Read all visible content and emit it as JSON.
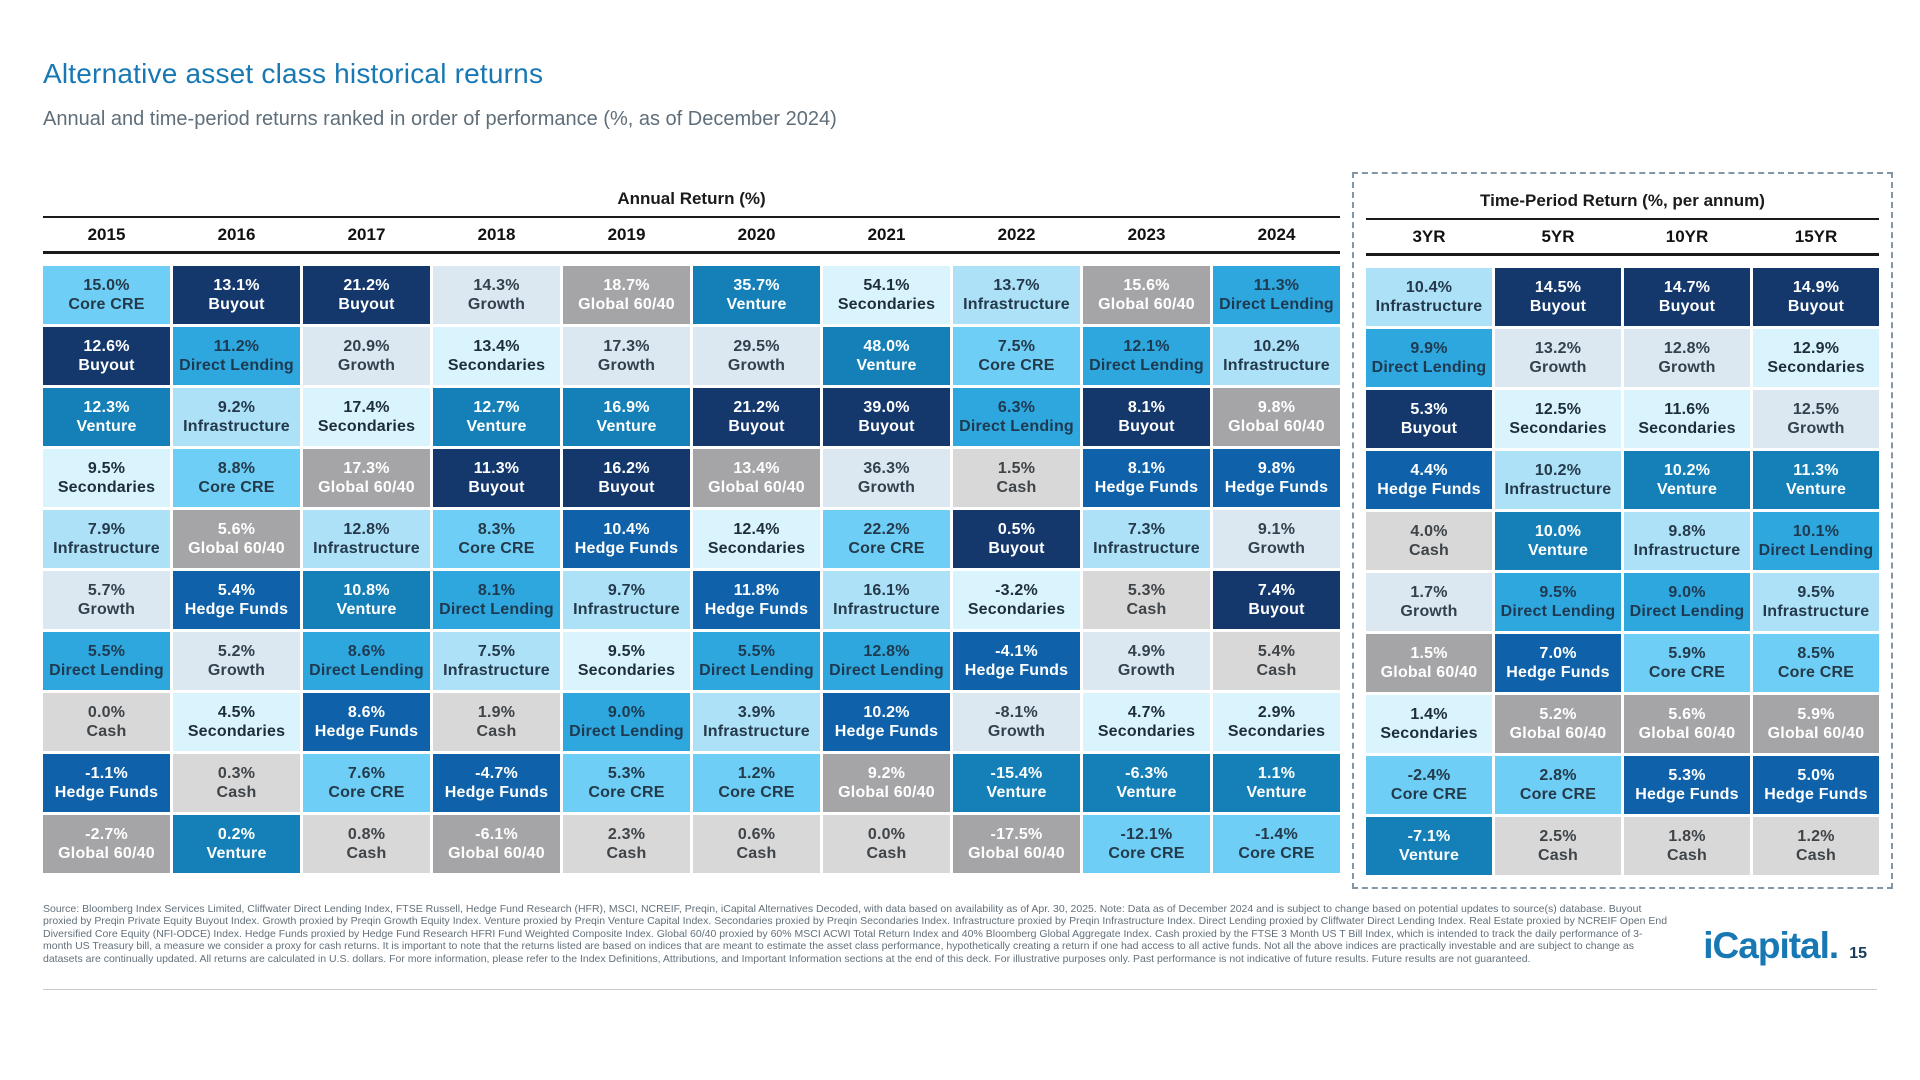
{
  "page": {
    "title": "Alternative asset class historical returns",
    "subtitle": "Annual and time-period returns ranked in order of performance (%, as of December 2024)",
    "logo_text": "iCapital",
    "logo_dot": ".",
    "page_number": "15",
    "footer": "Source: Bloomberg Index Services Limited, Cliffwater Direct Lending Index, FTSE Russell, Hedge Fund Research (HFR), MSCI, NCREIF, Preqin, iCapital Alternatives Decoded, with data based on availability as of Apr. 30, 2025. Note: Data as of December 2024 and is subject to change based on potential updates to source(s) database. Buyout proxied by Preqin Private Equity Buyout Index. Growth proxied by Preqin Growth Equity Index. Venture proxied by Preqin Venture Capital Index. Secondaries proxied by Preqin Secondaries Index. Infrastructure proxied by Preqin Infrastructure Index. Direct Lending proxied by Cliffwater Direct Lending Index. Real Estate proxied by NCREIF Open End Diversified Core Equity (NFI-ODCE) Index. Hedge Funds proxied by Hedge Fund Research HFRI Fund Weighted Composite Index. Global 60/40 proxied by 60% MSCI ACWI Total Return Index and 40% Bloomberg Global Aggregate Index. Cash proxied by the FTSE 3 Month US T Bill Index, which is intended to track the daily performance of 3-month US Treasury bill, a measure we consider a proxy for cash returns. It is important to note that the returns listed are based on indices that are meant to estimate the asset class performance, hypothetically creating a return if one had access to all active funds. Not all the above indices are practically investable and are subject to change as datasets are continually updated. All returns are calculated in U.S. dollars. For more information, please refer to the Index Definitions, Attributions, and Important Information sections at the end of this deck. For illustrative purposes only. Past performance is not indicative of future results. Future results are not guaranteed."
  },
  "colors": {
    "title_accent": "#1878B4",
    "asset_classes": {
      "Core CRE": {
        "bg": "#6ECEF5",
        "fg": "#24394A"
      },
      "Buyout": {
        "bg": "#14386B",
        "fg": "#FFFFFF"
      },
      "Venture": {
        "bg": "#1480B7",
        "fg": "#FFFFFF"
      },
      "Secondaries": {
        "bg": "#D9F4FD",
        "fg": "#1E2D3A"
      },
      "Infrastructure": {
        "bg": "#ADE1F8",
        "fg": "#24394A"
      },
      "Growth": {
        "bg": "#DBE8F2",
        "fg": "#33414D"
      },
      "Direct Lending": {
        "bg": "#2EA7DF",
        "fg": "#1E3A50"
      },
      "Cash": {
        "bg": "#D8D8D8",
        "fg": "#3F4448"
      },
      "Hedge Funds": {
        "bg": "#0F62A9",
        "fg": "#FFFFFF"
      },
      "Global 60/40": {
        "bg": "#A5A5A7",
        "fg": "#FFFFFF"
      }
    }
  },
  "chart_data": {
    "type": "table",
    "title": "Alternative asset class historical returns",
    "subtitle": "Annual and time-period returns ranked in order of performance (%, as of December 2024)",
    "sections": [
      {
        "id": "annual",
        "header": "Annual Return (%)",
        "columns": [
          {
            "label": "2015",
            "cells": [
              {
                "value": "15.0%",
                "asset": "Core CRE"
              },
              {
                "value": "12.6%",
                "asset": "Buyout"
              },
              {
                "value": "12.3%",
                "asset": "Venture"
              },
              {
                "value": "9.5%",
                "asset": "Secondaries"
              },
              {
                "value": "7.9%",
                "asset": "Infrastructure"
              },
              {
                "value": "5.7%",
                "asset": "Growth"
              },
              {
                "value": "5.5%",
                "asset": "Direct Lending"
              },
              {
                "value": "0.0%",
                "asset": "Cash"
              },
              {
                "value": "-1.1%",
                "asset": "Hedge Funds"
              },
              {
                "value": "-2.7%",
                "asset": "Global 60/40"
              }
            ]
          },
          {
            "label": "2016",
            "cells": [
              {
                "value": "13.1%",
                "asset": "Buyout"
              },
              {
                "value": "11.2%",
                "asset": "Direct Lending"
              },
              {
                "value": "9.2%",
                "asset": "Infrastructure"
              },
              {
                "value": "8.8%",
                "asset": "Core CRE"
              },
              {
                "value": "5.6%",
                "asset": "Global 60/40"
              },
              {
                "value": "5.4%",
                "asset": "Hedge Funds"
              },
              {
                "value": "5.2%",
                "asset": "Growth"
              },
              {
                "value": "4.5%",
                "asset": "Secondaries"
              },
              {
                "value": "0.3%",
                "asset": "Cash"
              },
              {
                "value": "0.2%",
                "asset": "Venture"
              }
            ]
          },
          {
            "label": "2017",
            "cells": [
              {
                "value": "21.2%",
                "asset": "Buyout"
              },
              {
                "value": "20.9%",
                "asset": "Growth"
              },
              {
                "value": "17.4%",
                "asset": "Secondaries"
              },
              {
                "value": "17.3%",
                "asset": "Global 60/40"
              },
              {
                "value": "12.8%",
                "asset": "Infrastructure"
              },
              {
                "value": "10.8%",
                "asset": "Venture"
              },
              {
                "value": "8.6%",
                "asset": "Direct Lending"
              },
              {
                "value": "8.6%",
                "asset": "Hedge Funds"
              },
              {
                "value": "7.6%",
                "asset": "Core CRE"
              },
              {
                "value": "0.8%",
                "asset": "Cash"
              }
            ]
          },
          {
            "label": "2018",
            "cells": [
              {
                "value": "14.3%",
                "asset": "Growth"
              },
              {
                "value": "13.4%",
                "asset": "Secondaries"
              },
              {
                "value": "12.7%",
                "asset": "Venture"
              },
              {
                "value": "11.3%",
                "asset": "Buyout"
              },
              {
                "value": "8.3%",
                "asset": "Core CRE"
              },
              {
                "value": "8.1%",
                "asset": "Direct Lending"
              },
              {
                "value": "7.5%",
                "asset": "Infrastructure"
              },
              {
                "value": "1.9%",
                "asset": "Cash"
              },
              {
                "value": "-4.7%",
                "asset": "Hedge Funds"
              },
              {
                "value": "-6.1%",
                "asset": "Global 60/40"
              }
            ]
          },
          {
            "label": "2019",
            "cells": [
              {
                "value": "18.7%",
                "asset": "Global 60/40"
              },
              {
                "value": "17.3%",
                "asset": "Growth"
              },
              {
                "value": "16.9%",
                "asset": "Venture"
              },
              {
                "value": "16.2%",
                "asset": "Buyout"
              },
              {
                "value": "10.4%",
                "asset": "Hedge Funds"
              },
              {
                "value": "9.7%",
                "asset": "Infrastructure"
              },
              {
                "value": "9.5%",
                "asset": "Secondaries"
              },
              {
                "value": "9.0%",
                "asset": "Direct Lending"
              },
              {
                "value": "5.3%",
                "asset": "Core CRE"
              },
              {
                "value": "2.3%",
                "asset": "Cash"
              }
            ]
          },
          {
            "label": "2020",
            "cells": [
              {
                "value": "35.7%",
                "asset": "Venture"
              },
              {
                "value": "29.5%",
                "asset": "Growth"
              },
              {
                "value": "21.2%",
                "asset": "Buyout"
              },
              {
                "value": "13.4%",
                "asset": "Global 60/40"
              },
              {
                "value": "12.4%",
                "asset": "Secondaries"
              },
              {
                "value": "11.8%",
                "asset": "Hedge Funds"
              },
              {
                "value": "5.5%",
                "asset": "Direct Lending"
              },
              {
                "value": "3.9%",
                "asset": "Infrastructure"
              },
              {
                "value": "1.2%",
                "asset": "Core CRE"
              },
              {
                "value": "0.6%",
                "asset": "Cash"
              }
            ]
          },
          {
            "label": "2021",
            "cells": [
              {
                "value": "54.1%",
                "asset": "Secondaries"
              },
              {
                "value": "48.0%",
                "asset": "Venture"
              },
              {
                "value": "39.0%",
                "asset": "Buyout"
              },
              {
                "value": "36.3%",
                "asset": "Growth"
              },
              {
                "value": "22.2%",
                "asset": "Core CRE"
              },
              {
                "value": "16.1%",
                "asset": "Infrastructure"
              },
              {
                "value": "12.8%",
                "asset": "Direct Lending"
              },
              {
                "value": "10.2%",
                "asset": "Hedge Funds"
              },
              {
                "value": "9.2%",
                "asset": "Global 60/40"
              },
              {
                "value": "0.0%",
                "asset": "Cash"
              }
            ]
          },
          {
            "label": "2022",
            "cells": [
              {
                "value": "13.7%",
                "asset": "Infrastructure"
              },
              {
                "value": "7.5%",
                "asset": "Core CRE"
              },
              {
                "value": "6.3%",
                "asset": "Direct Lending"
              },
              {
                "value": "1.5%",
                "asset": "Cash"
              },
              {
                "value": "0.5%",
                "asset": "Buyout"
              },
              {
                "value": "-3.2%",
                "asset": "Secondaries"
              },
              {
                "value": "-4.1%",
                "asset": "Hedge Funds"
              },
              {
                "value": "-8.1%",
                "asset": "Growth"
              },
              {
                "value": "-15.4%",
                "asset": "Venture"
              },
              {
                "value": "-17.5%",
                "asset": "Global 60/40"
              }
            ]
          },
          {
            "label": "2023",
            "cells": [
              {
                "value": "15.6%",
                "asset": "Global 60/40"
              },
              {
                "value": "12.1%",
                "asset": "Direct Lending"
              },
              {
                "value": "8.1%",
                "asset": "Buyout"
              },
              {
                "value": "8.1%",
                "asset": "Hedge Funds"
              },
              {
                "value": "7.3%",
                "asset": "Infrastructure"
              },
              {
                "value": "5.3%",
                "asset": "Cash"
              },
              {
                "value": "4.9%",
                "asset": "Growth"
              },
              {
                "value": "4.7%",
                "asset": "Secondaries"
              },
              {
                "value": "-6.3%",
                "asset": "Venture"
              },
              {
                "value": "-12.1%",
                "asset": "Core CRE"
              }
            ]
          },
          {
            "label": "2024",
            "cells": [
              {
                "value": "11.3%",
                "asset": "Direct Lending"
              },
              {
                "value": "10.2%",
                "asset": "Infrastructure"
              },
              {
                "value": "9.8%",
                "asset": "Global 60/40"
              },
              {
                "value": "9.8%",
                "asset": "Hedge Funds"
              },
              {
                "value": "9.1%",
                "asset": "Growth"
              },
              {
                "value": "7.4%",
                "asset": "Buyout"
              },
              {
                "value": "5.4%",
                "asset": "Cash"
              },
              {
                "value": "2.9%",
                "asset": "Secondaries"
              },
              {
                "value": "1.1%",
                "asset": "Venture"
              },
              {
                "value": "-1.4%",
                "asset": "Core CRE"
              }
            ]
          }
        ]
      },
      {
        "id": "time_period",
        "header": "Time-Period Return (%, per annum)",
        "columns": [
          {
            "label": "3YR",
            "cells": [
              {
                "value": "10.4%",
                "asset": "Infrastructure"
              },
              {
                "value": "9.9%",
                "asset": "Direct Lending"
              },
              {
                "value": "5.3%",
                "asset": "Buyout"
              },
              {
                "value": "4.4%",
                "asset": "Hedge Funds"
              },
              {
                "value": "4.0%",
                "asset": "Cash"
              },
              {
                "value": "1.7%",
                "asset": "Growth"
              },
              {
                "value": "1.5%",
                "asset": "Global 60/40"
              },
              {
                "value": "1.4%",
                "asset": "Secondaries"
              },
              {
                "value": "-2.4%",
                "asset": "Core CRE"
              },
              {
                "value": "-7.1%",
                "asset": "Venture"
              }
            ]
          },
          {
            "label": "5YR",
            "cells": [
              {
                "value": "14.5%",
                "asset": "Buyout"
              },
              {
                "value": "13.2%",
                "asset": "Growth"
              },
              {
                "value": "12.5%",
                "asset": "Secondaries"
              },
              {
                "value": "10.2%",
                "asset": "Infrastructure"
              },
              {
                "value": "10.0%",
                "asset": "Venture"
              },
              {
                "value": "9.5%",
                "asset": "Direct Lending"
              },
              {
                "value": "7.0%",
                "asset": "Hedge Funds"
              },
              {
                "value": "5.2%",
                "asset": "Global 60/40"
              },
              {
                "value": "2.8%",
                "asset": "Core CRE"
              },
              {
                "value": "2.5%",
                "asset": "Cash"
              }
            ]
          },
          {
            "label": "10YR",
            "cells": [
              {
                "value": "14.7%",
                "asset": "Buyout"
              },
              {
                "value": "12.8%",
                "asset": "Growth"
              },
              {
                "value": "11.6%",
                "asset": "Secondaries"
              },
              {
                "value": "10.2%",
                "asset": "Venture"
              },
              {
                "value": "9.8%",
                "asset": "Infrastructure"
              },
              {
                "value": "9.0%",
                "asset": "Direct Lending"
              },
              {
                "value": "5.9%",
                "asset": "Core CRE"
              },
              {
                "value": "5.6%",
                "asset": "Global 60/40"
              },
              {
                "value": "5.3%",
                "asset": "Hedge Funds"
              },
              {
                "value": "1.8%",
                "asset": "Cash"
              }
            ]
          },
          {
            "label": "15YR",
            "cells": [
              {
                "value": "14.9%",
                "asset": "Buyout"
              },
              {
                "value": "12.9%",
                "asset": "Secondaries"
              },
              {
                "value": "12.5%",
                "asset": "Growth"
              },
              {
                "value": "11.3%",
                "asset": "Venture"
              },
              {
                "value": "10.1%",
                "asset": "Direct Lending"
              },
              {
                "value": "9.5%",
                "asset": "Infrastructure"
              },
              {
                "value": "8.5%",
                "asset": "Core CRE"
              },
              {
                "value": "5.9%",
                "asset": "Global 60/40"
              },
              {
                "value": "5.0%",
                "asset": "Hedge Funds"
              },
              {
                "value": "1.2%",
                "asset": "Cash"
              }
            ]
          }
        ]
      }
    ]
  }
}
